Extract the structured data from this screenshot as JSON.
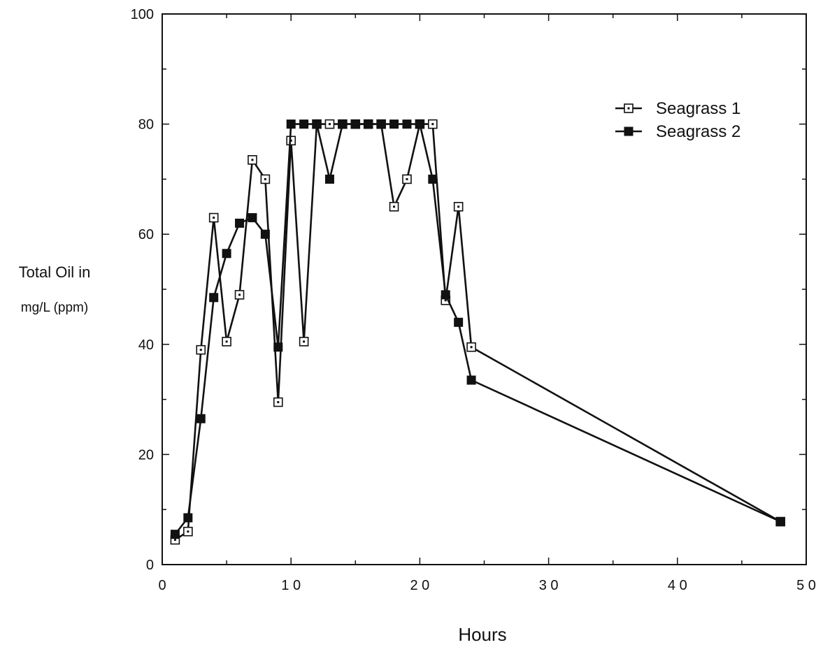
{
  "chart_data": {
    "type": "line",
    "xlabel": "Hours",
    "ylabel_lines": [
      "Total Oil in",
      "mg/L (ppm)"
    ],
    "xlim": [
      0,
      50
    ],
    "ylim": [
      0,
      100
    ],
    "x_ticks": [
      {
        "value": 0,
        "label": "0"
      },
      {
        "value": 10,
        "label": "1 0"
      },
      {
        "value": 20,
        "label": "2 0"
      },
      {
        "value": 30,
        "label": "3 0"
      },
      {
        "value": 40,
        "label": "4 0"
      },
      {
        "value": 50,
        "label": "5 0"
      }
    ],
    "y_ticks": [
      {
        "value": 0,
        "label": "0"
      },
      {
        "value": 20,
        "label": "20"
      },
      {
        "value": 40,
        "label": "40"
      },
      {
        "value": 60,
        "label": "60"
      },
      {
        "value": 80,
        "label": "80"
      },
      {
        "value": 100,
        "label": "100"
      }
    ],
    "legend_position": "top-right",
    "series": [
      {
        "name": "Seagrass 1",
        "marker": "open-square",
        "x": [
          1,
          2,
          3,
          4,
          5,
          6,
          7,
          8,
          9,
          10,
          11,
          12,
          13,
          14,
          15,
          16,
          17,
          18,
          19,
          20,
          21,
          22,
          23,
          24,
          48
        ],
        "y": [
          4.5,
          6,
          39,
          63,
          40.5,
          49,
          73.5,
          70,
          29.5,
          77,
          40.5,
          80,
          80,
          80,
          80,
          80,
          80,
          65,
          70,
          80,
          80,
          48,
          65,
          39.5,
          7.8
        ]
      },
      {
        "name": "Seagrass 2",
        "marker": "filled-square",
        "x": [
          1,
          2,
          3,
          4,
          5,
          6,
          7,
          8,
          9,
          10,
          11,
          12,
          13,
          14,
          15,
          16,
          17,
          18,
          19,
          20,
          21,
          22,
          23,
          24,
          48
        ],
        "y": [
          5.5,
          8.5,
          26.5,
          48.5,
          56.5,
          62,
          63,
          60,
          39.5,
          80,
          80,
          80,
          70,
          80,
          80,
          80,
          80,
          80,
          80,
          80,
          70,
          49,
          44,
          33.5,
          7.8
        ]
      }
    ]
  }
}
